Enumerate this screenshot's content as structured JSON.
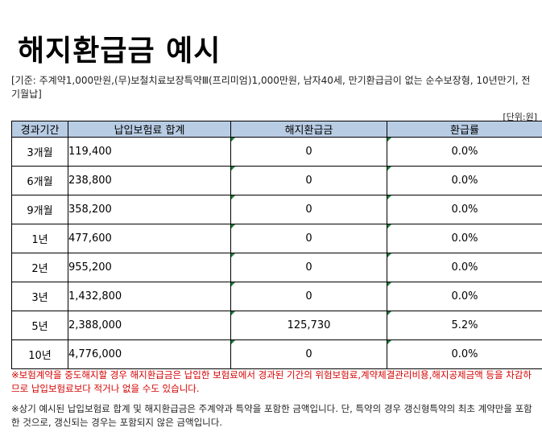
{
  "title": "해지환급금 예시",
  "criteria": "[기준: 주계약1,000만원,(무)보철치료보장특약Ⅲ(프리미엄)1,000만원, 남자40세, 만기환급금이 없는 순수보장형, 10년만기, 전기월납]",
  "unit": "[단위:원]",
  "table": {
    "headers": [
      "경과기간",
      "납입보험료 합계",
      "해지환급금",
      "환급률"
    ],
    "rows": [
      {
        "period": "3개월",
        "paid": "119,400",
        "refund": "0",
        "rate": "0.0%"
      },
      {
        "period": "6개월",
        "paid": "238,800",
        "refund": "0",
        "rate": "0.0%"
      },
      {
        "period": "9개월",
        "paid": "358,200",
        "refund": "0",
        "rate": "0.0%"
      },
      {
        "period": "1년",
        "paid": "477,600",
        "refund": "0",
        "rate": "0.0%"
      },
      {
        "period": "2년",
        "paid": "955,200",
        "refund": "0",
        "rate": "0.0%"
      },
      {
        "period": "3년",
        "paid": "1,432,800",
        "refund": "0",
        "rate": "0.0%"
      },
      {
        "period": "5년",
        "paid": "2,388,000",
        "refund": "125,730",
        "rate": "5.2%"
      },
      {
        "period": "10년",
        "paid": "4,776,000",
        "refund": "0",
        "rate": "0.0%"
      }
    ]
  },
  "notes": {
    "red": "※보험계약을 중도해지할 경우 해지환급금은 납입한 보험료에서 경과된 기간의 위험보험료,계약체결관리비용,해지공제금액 등을 차감하므로 납입보험료보다 적거나 없을 수도 있습니다.",
    "black": "※상기 예시된 납입보험료 합계 및 해지환급금은 주계약과 특약을 포함한 금액입니다. 단, 특약의 경우 갱신형특약의 최초 계약만을 포함한 것으로, 갱신되는 경우는 포함되지 않은 금액입니다."
  },
  "colors": {
    "header_bg": "#b8cce4",
    "note_red": "#d40000",
    "cell_marker": "#1a7f37"
  }
}
